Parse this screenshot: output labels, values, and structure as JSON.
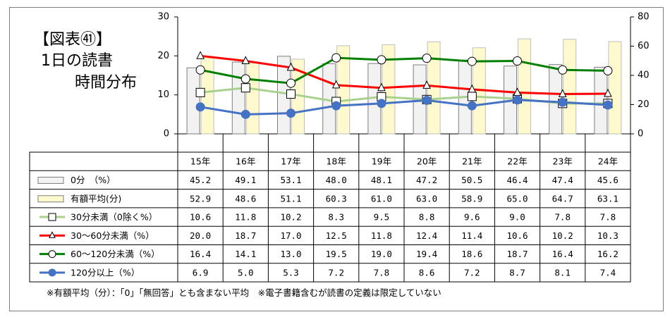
{
  "figure": {
    "title_line1": "【図表㊶】",
    "title_line2": "1日の読書",
    "title_line3": "時間分布",
    "footnote": "※有額平均（分）：「0」「無回答」とも含まない平均　※電子書籍含むが読書の定義は限定していない"
  },
  "chart_data": {
    "type": "bar",
    "categories": [
      "15年",
      "16年",
      "17年",
      "18年",
      "19年",
      "20年",
      "21年",
      "22年",
      "23年",
      "24年"
    ],
    "y_left": {
      "range": [
        0,
        30
      ],
      "ticks": [
        "0",
        "10",
        "20",
        "30"
      ]
    },
    "y_right": {
      "range": [
        0,
        80
      ],
      "ticks": [
        "0",
        "20",
        "40",
        "60",
        "80"
      ]
    },
    "series": [
      {
        "name": "0分　（%）",
        "kind": "bar",
        "axis": "left",
        "color": "#f2f2f2",
        "values": [
          "45.2",
          "49.1",
          "53.1",
          "48.0",
          "48.1",
          "47.2",
          "50.5",
          "46.4",
          "47.4",
          "45.6"
        ]
      },
      {
        "name": "有額平均(分)",
        "kind": "bar",
        "axis": "right",
        "color": "#fffacd",
        "values": [
          "52.9",
          "48.6",
          "51.1",
          "60.3",
          "61.0",
          "63.0",
          "58.9",
          "65.0",
          "64.7",
          "63.1"
        ]
      },
      {
        "name": "30分未満（0除く%）",
        "kind": "line",
        "axis": "right",
        "color": "#a9d18e",
        "marker": "square",
        "values": [
          "10.6",
          "11.8",
          "10.2",
          "8.3",
          "9.5",
          "8.8",
          "9.6",
          "9.0",
          "7.8",
          "7.8"
        ]
      },
      {
        "name": "30～60分未満（%）",
        "kind": "line",
        "axis": "right",
        "color": "#ff0000",
        "marker": "triangle",
        "values": [
          "20.0",
          "18.7",
          "17.0",
          "12.5",
          "11.8",
          "12.4",
          "11.4",
          "10.6",
          "10.2",
          "10.3"
        ]
      },
      {
        "name": "60～120分未満（%）",
        "kind": "line",
        "axis": "right",
        "color": "#008000",
        "marker": "circle",
        "values": [
          "16.4",
          "14.1",
          "13.0",
          "19.5",
          "19.0",
          "19.4",
          "18.6",
          "18.7",
          "16.4",
          "16.2"
        ]
      },
      {
        "name": "120分以上（%）",
        "kind": "line",
        "axis": "right",
        "color": "#4472c4",
        "marker": "dot",
        "values": [
          "6.9",
          "5.0",
          "5.3",
          "7.2",
          "7.8",
          "8.6",
          "7.2",
          "8.7",
          "8.1",
          "7.4"
        ]
      }
    ]
  }
}
